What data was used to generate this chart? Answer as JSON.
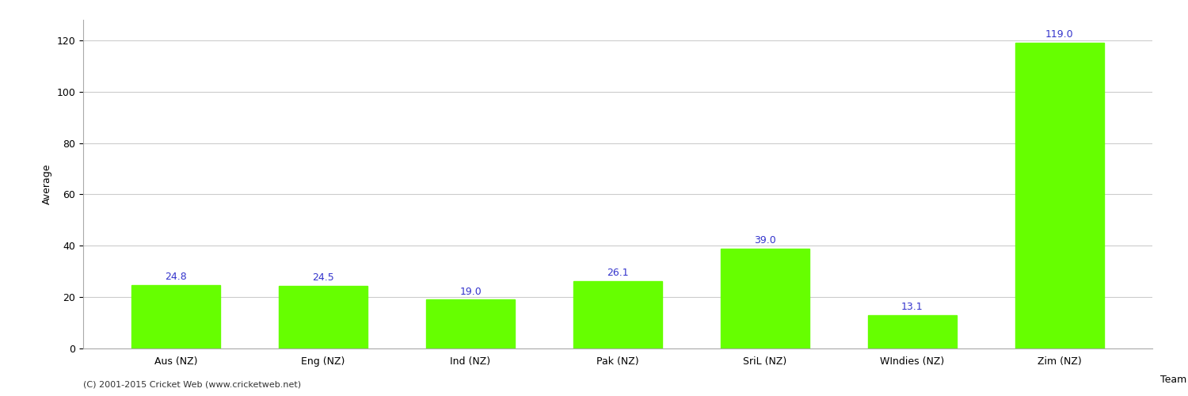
{
  "categories": [
    "Aus (NZ)",
    "Eng (NZ)",
    "Ind (NZ)",
    "Pak (NZ)",
    "SriL (NZ)",
    "WIndies (NZ)",
    "Zim (NZ)"
  ],
  "values": [
    24.8,
    24.5,
    19.0,
    26.1,
    39.0,
    13.1,
    119.0
  ],
  "bar_color": "#66ff00",
  "bar_edge_color": "#66ff00",
  "value_color": "#3333cc",
  "ylabel": "Average",
  "xlabel": "Team",
  "ylim": [
    0,
    128
  ],
  "yticks": [
    0,
    20,
    40,
    60,
    80,
    100,
    120
  ],
  "grid_color": "#cccccc",
  "bg_color": "#ffffff",
  "footer": "(C) 2001-2015 Cricket Web (www.cricketweb.net)",
  "label_fontsize": 9,
  "tick_fontsize": 9,
  "value_fontsize": 9,
  "footer_fontsize": 8
}
